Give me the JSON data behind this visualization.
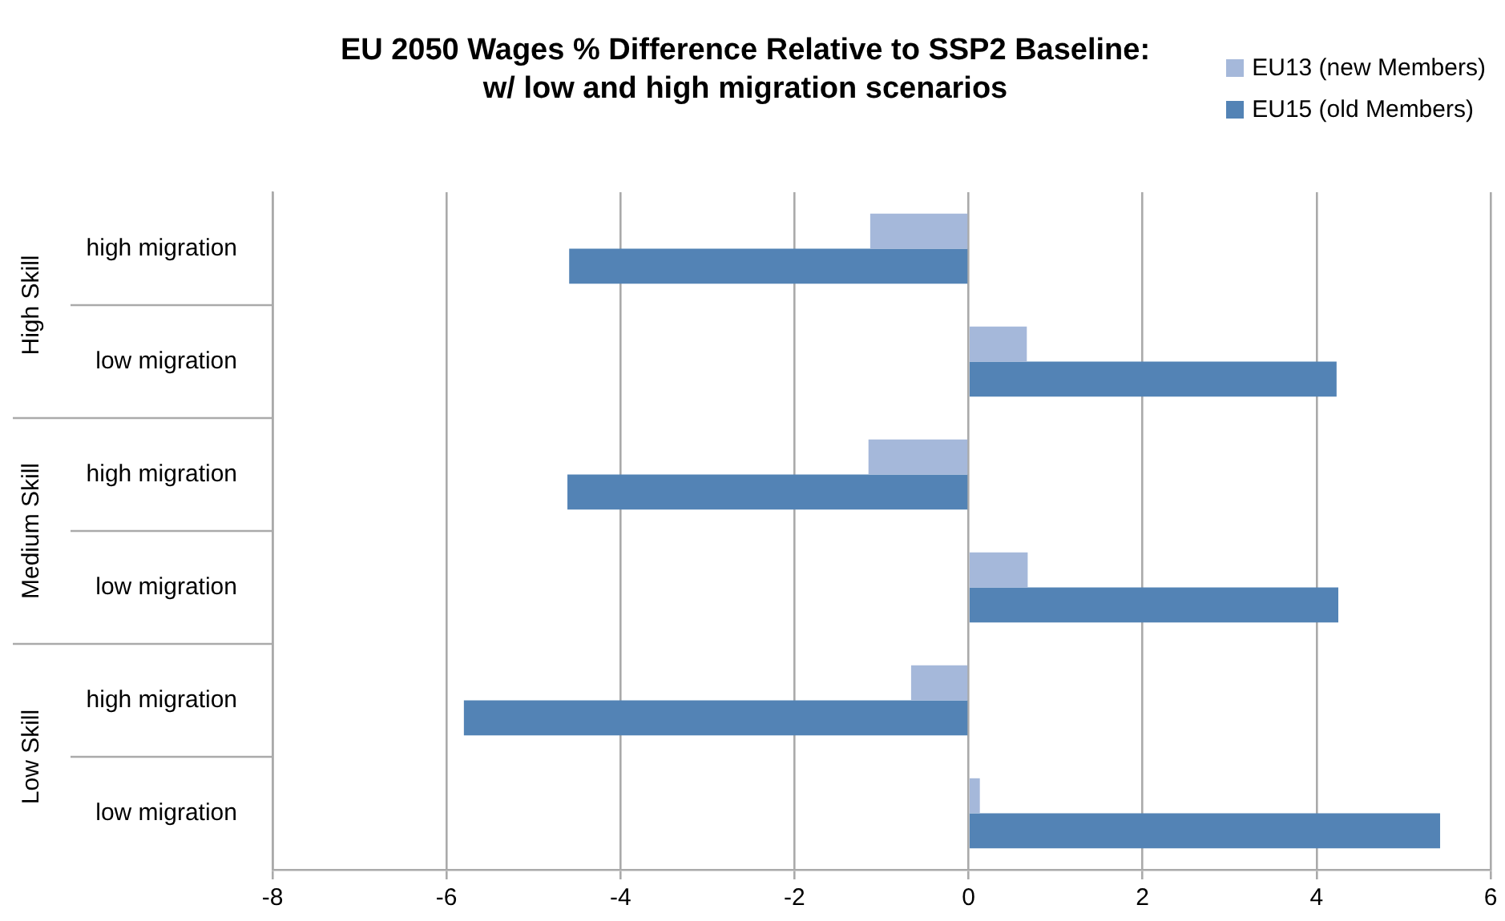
{
  "chart_data": {
    "type": "bar",
    "orientation": "horizontal",
    "title": "EU 2050 Wages % Difference Relative to SSP2 Baseline:\nw/ low and high migration scenarios",
    "categories": [
      "high migration",
      "low migration",
      "high migration",
      "low migration",
      "high migration",
      "low migration"
    ],
    "series": [
      {
        "name": "EU13 (new Members)",
        "color": "#a5b8da",
        "values": [
          -1.13,
          0.67,
          -1.15,
          0.68,
          -0.66,
          0.13
        ]
      },
      {
        "name": "EU15 (old Members)",
        "color": "#5383b5",
        "values": [
          -4.59,
          4.23,
          -4.61,
          4.25,
          -5.8,
          5.42
        ]
      }
    ],
    "annotations": [
      "High Skill",
      "Medium Skill",
      "Low Skill"
    ],
    "xlim": [
      -8,
      6
    ],
    "xticks": [
      -8,
      -6,
      -4,
      -2,
      0,
      2,
      4,
      6
    ],
    "grid": "x",
    "legend": "top right"
  }
}
